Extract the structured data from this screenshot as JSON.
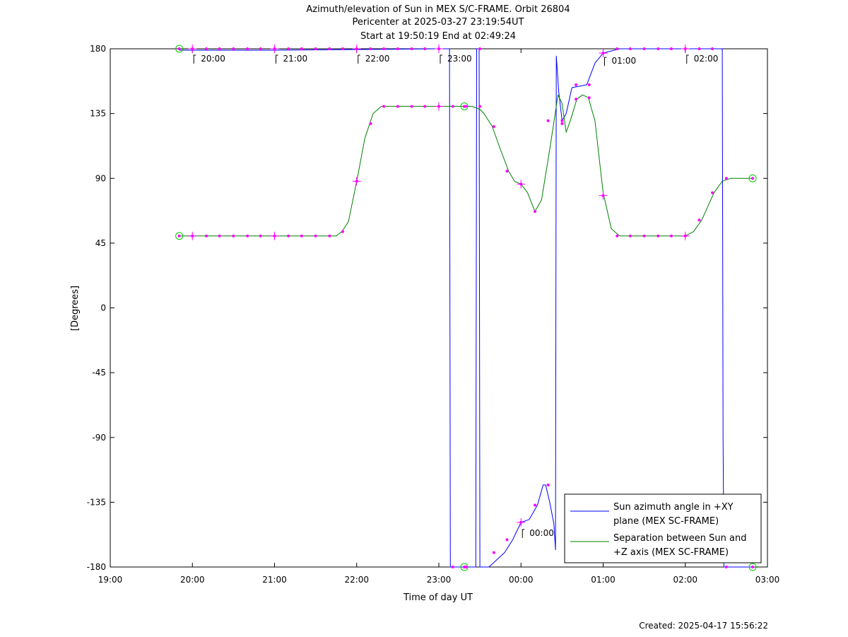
{
  "title_lines": [
    "Azimuth/elevation of Sun in MEX S/C-FRAME.  Orbit 26804",
    "Pericenter at 2025-03-27 23:19:54UT",
    "Start at 19:50:19 End at 02:49:24"
  ],
  "created": "Created: 2025-04-17 15:56:22",
  "chart_data": {
    "type": "line",
    "title": "Azimuth/elevation of Sun in MEX S/C-FRAME.  Orbit 26804",
    "xlabel": "Time of day UT",
    "ylabel": "[Degrees]",
    "x_unit": "hours after 19:00 UT",
    "xlim": [
      0,
      8
    ],
    "ylim": [
      -180,
      180
    ],
    "xticks": [
      {
        "v": 0,
        "label": "19:00"
      },
      {
        "v": 1,
        "label": "20:00"
      },
      {
        "v": 2,
        "label": "21:00"
      },
      {
        "v": 3,
        "label": "22:00"
      },
      {
        "v": 4,
        "label": "23:00"
      },
      {
        "v": 5,
        "label": "00:00"
      },
      {
        "v": 6,
        "label": "01:00"
      },
      {
        "v": 7,
        "label": "02:00"
      },
      {
        "v": 8,
        "label": "03:00"
      }
    ],
    "yticks": [
      {
        "v": 180,
        "label": "180"
      },
      {
        "v": 135,
        "label": "135"
      },
      {
        "v": 90,
        "label": "90"
      },
      {
        "v": 45,
        "label": "45"
      },
      {
        "v": 0,
        "label": "0"
      },
      {
        "v": -45,
        "label": "-45"
      },
      {
        "v": -90,
        "label": "-90"
      },
      {
        "v": -135,
        "label": "-135"
      },
      {
        "v": -180,
        "label": "-180"
      }
    ],
    "grid": false,
    "legend_position": "bottom-right",
    "series": [
      {
        "name": "Sun azimuth angle in +XY plane (MEX SC-FRAME)",
        "legend_lines": [
          "Sun azimuth angle in +XY",
          "plane (MEX SC-FRAME)"
        ],
        "color": "#0000ff",
        "points": [
          [
            0.84,
            179
          ],
          [
            2.0,
            179
          ],
          [
            3.0,
            179.5
          ],
          [
            4.0,
            180
          ],
          [
            4.13,
            180
          ],
          [
            4.14,
            -180
          ],
          [
            4.45,
            -180
          ],
          [
            4.46,
            180
          ],
          [
            4.49,
            180
          ],
          [
            4.5,
            -180
          ],
          [
            4.61,
            -180
          ],
          [
            4.8,
            -170
          ],
          [
            4.9,
            -161
          ],
          [
            5.0,
            -149
          ],
          [
            5.1,
            -147
          ],
          [
            5.2,
            -137
          ],
          [
            5.27,
            -123
          ],
          [
            5.3,
            -123
          ],
          [
            5.35,
            -135
          ],
          [
            5.4,
            -150
          ],
          [
            5.42,
            -168
          ],
          [
            5.43,
            175
          ],
          [
            5.46,
            150
          ],
          [
            5.5,
            130
          ],
          [
            5.55,
            135
          ],
          [
            5.62,
            153
          ],
          [
            5.8,
            155
          ],
          [
            5.9,
            170
          ],
          [
            6.0,
            177
          ],
          [
            6.2,
            180
          ],
          [
            7.0,
            180
          ],
          [
            7.43,
            180
          ],
          [
            7.45,
            180
          ],
          [
            7.46,
            -90
          ],
          [
            7.47,
            -180
          ],
          [
            7.82,
            -180
          ]
        ]
      },
      {
        "name": "Separation between Sun and +Z axis (MEX SC-FRAME)",
        "legend_lines": [
          "Separation between Sun and",
          "+Z axis (MEX SC-FRAME)"
        ],
        "color": "#008000",
        "points": [
          [
            0.84,
            50
          ],
          [
            1.0,
            50
          ],
          [
            1.5,
            50
          ],
          [
            2.0,
            50
          ],
          [
            2.5,
            50
          ],
          [
            2.75,
            50
          ],
          [
            2.82,
            53
          ],
          [
            2.9,
            60
          ],
          [
            3.0,
            88
          ],
          [
            3.1,
            118
          ],
          [
            3.2,
            135
          ],
          [
            3.3,
            140
          ],
          [
            3.5,
            140
          ],
          [
            4.0,
            140
          ],
          [
            4.2,
            140
          ],
          [
            4.4,
            140
          ],
          [
            4.5,
            138
          ],
          [
            4.55,
            135
          ],
          [
            4.65,
            126
          ],
          [
            4.75,
            110
          ],
          [
            4.85,
            95
          ],
          [
            4.92,
            88
          ],
          [
            5.0,
            86
          ],
          [
            5.08,
            80
          ],
          [
            5.17,
            67
          ],
          [
            5.25,
            75
          ],
          [
            5.35,
            110
          ],
          [
            5.45,
            148
          ],
          [
            5.5,
            142
          ],
          [
            5.55,
            122
          ],
          [
            5.6,
            130
          ],
          [
            5.68,
            145
          ],
          [
            5.75,
            148
          ],
          [
            5.82,
            146
          ],
          [
            5.9,
            130
          ],
          [
            6.0,
            80
          ],
          [
            6.1,
            55
          ],
          [
            6.2,
            50
          ],
          [
            6.5,
            50
          ],
          [
            7.0,
            50
          ],
          [
            7.1,
            53
          ],
          [
            7.2,
            61
          ],
          [
            7.35,
            80
          ],
          [
            7.45,
            88
          ],
          [
            7.55,
            90
          ],
          [
            7.82,
            90
          ]
        ]
      }
    ],
    "hour_labels": [
      {
        "t": 1,
        "y": 180,
        "label": "20:00"
      },
      {
        "t": 2,
        "y": 180,
        "label": "21:00"
      },
      {
        "t": 3,
        "y": 180,
        "label": "22:00"
      },
      {
        "t": 4,
        "y": 180,
        "label": "23:00"
      },
      {
        "t": 5,
        "y": -150,
        "label": "00:00"
      },
      {
        "t": 6,
        "y": 178,
        "label": "01:00"
      },
      {
        "t": 7,
        "y": 180,
        "label": "02:00"
      }
    ],
    "marker_points": [
      [
        1.0,
        180
      ],
      [
        1.17,
        180
      ],
      [
        1.33,
        180
      ],
      [
        1.5,
        180
      ],
      [
        1.67,
        180
      ],
      [
        1.83,
        180
      ],
      [
        2.0,
        180
      ],
      [
        2.17,
        180
      ],
      [
        2.33,
        180
      ],
      [
        2.5,
        180
      ],
      [
        2.67,
        180
      ],
      [
        2.83,
        180
      ],
      [
        3.0,
        180
      ],
      [
        3.17,
        180
      ],
      [
        3.33,
        180
      ],
      [
        3.5,
        180
      ],
      [
        3.67,
        180
      ],
      [
        3.83,
        180
      ],
      [
        4.0,
        180
      ],
      [
        4.17,
        -180
      ],
      [
        4.33,
        -180
      ],
      [
        4.5,
        180
      ],
      [
        4.67,
        -170
      ],
      [
        4.83,
        -161
      ],
      [
        5.0,
        -149
      ],
      [
        5.17,
        -137
      ],
      [
        5.33,
        -123
      ],
      [
        5.5,
        130
      ],
      [
        5.67,
        155
      ],
      [
        5.83,
        155
      ],
      [
        6.0,
        177
      ],
      [
        6.17,
        180
      ],
      [
        6.33,
        180
      ],
      [
        6.5,
        180
      ],
      [
        6.67,
        180
      ],
      [
        6.83,
        180
      ],
      [
        7.0,
        180
      ],
      [
        7.17,
        180
      ],
      [
        7.33,
        180
      ],
      [
        7.5,
        -180
      ],
      [
        1.0,
        50
      ],
      [
        1.17,
        50
      ],
      [
        1.33,
        50
      ],
      [
        1.5,
        50
      ],
      [
        1.67,
        50
      ],
      [
        1.83,
        50
      ],
      [
        2.0,
        50
      ],
      [
        2.17,
        50
      ],
      [
        2.33,
        50
      ],
      [
        2.5,
        50
      ],
      [
        2.67,
        50
      ],
      [
        2.83,
        53
      ],
      [
        3.0,
        88
      ],
      [
        3.17,
        128
      ],
      [
        3.33,
        140
      ],
      [
        3.5,
        140
      ],
      [
        3.67,
        140
      ],
      [
        3.83,
        140
      ],
      [
        4.0,
        140
      ],
      [
        4.17,
        140
      ],
      [
        4.33,
        140
      ],
      [
        4.5,
        140
      ],
      [
        4.67,
        126
      ],
      [
        4.83,
        95
      ],
      [
        5.0,
        86
      ],
      [
        5.17,
        67
      ],
      [
        5.33,
        130
      ],
      [
        5.5,
        128
      ],
      [
        5.67,
        145
      ],
      [
        5.83,
        146
      ],
      [
        6.0,
        78
      ],
      [
        6.17,
        50
      ],
      [
        6.33,
        50
      ],
      [
        6.5,
        50
      ],
      [
        6.67,
        50
      ],
      [
        6.83,
        50
      ],
      [
        7.0,
        50
      ],
      [
        7.17,
        61
      ],
      [
        7.33,
        80
      ],
      [
        7.5,
        90
      ]
    ],
    "hour_crosses": [
      [
        1,
        180
      ],
      [
        2,
        180
      ],
      [
        3,
        180
      ],
      [
        4,
        180
      ],
      [
        5,
        -149
      ],
      [
        6,
        177
      ],
      [
        7,
        180
      ],
      [
        1,
        50
      ],
      [
        2,
        50
      ],
      [
        3,
        88
      ],
      [
        4,
        140
      ],
      [
        5,
        86
      ],
      [
        6,
        78
      ],
      [
        7,
        50
      ]
    ],
    "endpoint_circles": [
      [
        0.84,
        180
      ],
      [
        0.84,
        50
      ],
      [
        4.31,
        -180
      ],
      [
        4.31,
        140
      ],
      [
        7.82,
        -180
      ],
      [
        7.82,
        90
      ]
    ]
  }
}
